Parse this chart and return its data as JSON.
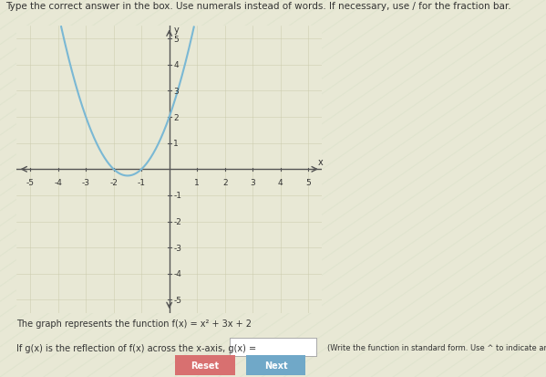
{
  "title": "Type the correct answer in the box. Use numerals instead of words. If necessary, use / for the fraction bar.",
  "function_label": "The graph represents the function f(x) = x² + 3x + 2",
  "question_label": "If g(x) is the reflection of f(x) across the x-axis, g(x) =",
  "hint_label": "(Write the function in standard form. Use ^ to indicate an exponent.)",
  "x_label": "x",
  "y_label": "y",
  "xlim": [
    -5.5,
    5.5
  ],
  "ylim": [
    -5.5,
    5.5
  ],
  "xticks": [
    -5,
    -4,
    -3,
    -2,
    -1,
    1,
    2,
    3,
    4,
    5
  ],
  "yticks": [
    -5,
    -4,
    -3,
    -2,
    -1,
    1,
    2,
    3,
    4,
    5
  ],
  "curve_color": "#7ab8d4",
  "curve_linewidth": 1.5,
  "bg_color": "#e8e8d5",
  "stripe_color_1": "#e0e8d0",
  "stripe_color_2": "#dce0c8",
  "grid_color": "#c8c8a8",
  "axis_color": "#555555",
  "text_color": "#333333",
  "reset_btn_color": "#d87070",
  "next_btn_color": "#70a8c8",
  "btn_text_color": "#ffffff",
  "title_fontsize": 7.5,
  "label_fontsize": 7.0,
  "tick_fontsize": 6.5
}
